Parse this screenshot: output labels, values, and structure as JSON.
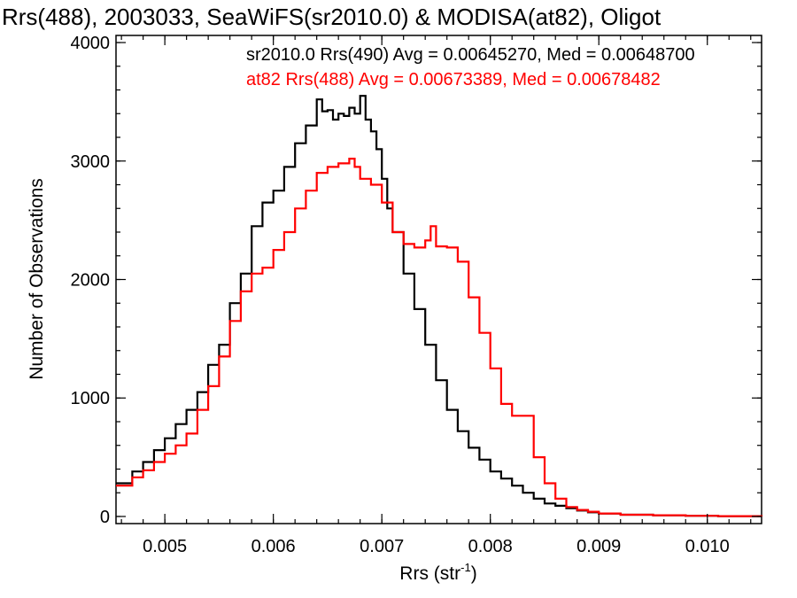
{
  "chart_data": {
    "type": "line",
    "title": "Rrs(488), 2003033, SeaWiFS(sr2010.0) & MODISA(at82), Oligot",
    "xlabel_main": "Rrs (str",
    "xlabel_sup": "-1",
    "xlabel_close": ")",
    "ylabel": "Number of Observations",
    "xlim": [
      0.00455,
      0.0105
    ],
    "ylim": [
      -60,
      4060
    ],
    "xticks": [
      0.005,
      0.006,
      0.007,
      0.008,
      0.009,
      0.01
    ],
    "xtick_labels": [
      "0.005",
      "0.006",
      "0.007",
      "0.008",
      "0.009",
      "0.010"
    ],
    "yticks": [
      0,
      1000,
      2000,
      3000,
      4000
    ],
    "ytick_labels": [
      "0",
      "1000",
      "2000",
      "3000",
      "4000"
    ],
    "legend_position": "top-right",
    "series": [
      {
        "label": "sr2010.0 Rrs(490) Avg = 0.00645270, Med = 0.00648700",
        "color": "#000000",
        "x": [
          0.00455,
          0.0047,
          0.0048,
          0.0049,
          0.005,
          0.0051,
          0.0052,
          0.0053,
          0.0054,
          0.0055,
          0.0056,
          0.0057,
          0.0058,
          0.0059,
          0.006,
          0.0061,
          0.0062,
          0.0063,
          0.0064,
          0.00645,
          0.0065,
          0.00655,
          0.0066,
          0.00665,
          0.0067,
          0.00675,
          0.0068,
          0.00685,
          0.0069,
          0.00695,
          0.007,
          0.00705,
          0.0071,
          0.0072,
          0.0073,
          0.0074,
          0.0075,
          0.0076,
          0.0077,
          0.0078,
          0.0079,
          0.008,
          0.0081,
          0.0082,
          0.0083,
          0.0084,
          0.0085,
          0.0086,
          0.0087,
          0.0088,
          0.0089,
          0.009,
          0.0092,
          0.0095,
          0.0098,
          0.0101,
          0.0105
        ],
        "y": [
          280,
          380,
          460,
          560,
          660,
          780,
          900,
          1050,
          1280,
          1450,
          1800,
          2050,
          2450,
          2650,
          2750,
          2950,
          3150,
          3300,
          3520,
          3420,
          3430,
          3350,
          3400,
          3380,
          3450,
          3400,
          3550,
          3350,
          3250,
          3100,
          2850,
          2600,
          2400,
          2050,
          1750,
          1450,
          1150,
          900,
          720,
          580,
          480,
          380,
          320,
          260,
          200,
          150,
          110,
          90,
          70,
          50,
          35,
          25,
          15,
          10,
          6,
          3,
          2
        ]
      },
      {
        "label": "at82 Rrs(488) Avg = 0.00673389, Med = 0.00678482",
        "color": "#ff0000",
        "x": [
          0.00455,
          0.0047,
          0.0048,
          0.0049,
          0.005,
          0.0051,
          0.0052,
          0.0053,
          0.0054,
          0.0055,
          0.0056,
          0.0057,
          0.0058,
          0.0059,
          0.006,
          0.0061,
          0.0062,
          0.0063,
          0.0064,
          0.0065,
          0.0066,
          0.0067,
          0.00675,
          0.0068,
          0.0069,
          0.007,
          0.0071,
          0.0072,
          0.0073,
          0.0074,
          0.00745,
          0.0075,
          0.0076,
          0.0077,
          0.0078,
          0.0079,
          0.008,
          0.0081,
          0.0082,
          0.0083,
          0.0084,
          0.0085,
          0.0086,
          0.0087,
          0.0088,
          0.0089,
          0.009,
          0.0092,
          0.0095,
          0.0098,
          0.0101,
          0.0105
        ],
        "y": [
          260,
          330,
          390,
          460,
          530,
          600,
          700,
          900,
          1100,
          1350,
          1650,
          1900,
          2050,
          2100,
          2250,
          2400,
          2600,
          2750,
          2900,
          2950,
          2980,
          3020,
          2950,
          2850,
          2800,
          2650,
          2400,
          2300,
          2270,
          2330,
          2450,
          2280,
          2270,
          2150,
          1850,
          1550,
          1250,
          950,
          850,
          850,
          500,
          280,
          150,
          80,
          55,
          40,
          25,
          15,
          10,
          6,
          3,
          2
        ]
      }
    ]
  }
}
